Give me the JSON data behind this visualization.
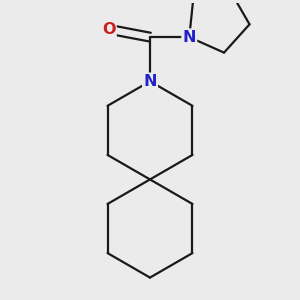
{
  "bg_color": "#ebebeb",
  "bond_color": "#1a1a1a",
  "N_color": "#2222cc",
  "O_color": "#cc2020",
  "bond_width": 1.6,
  "fig_size": [
    3.0,
    3.0
  ],
  "dpi": 100,
  "xlim": [
    -1.2,
    1.2
  ],
  "ylim": [
    -1.65,
    1.35
  ],
  "label_fontsize": 11.5
}
